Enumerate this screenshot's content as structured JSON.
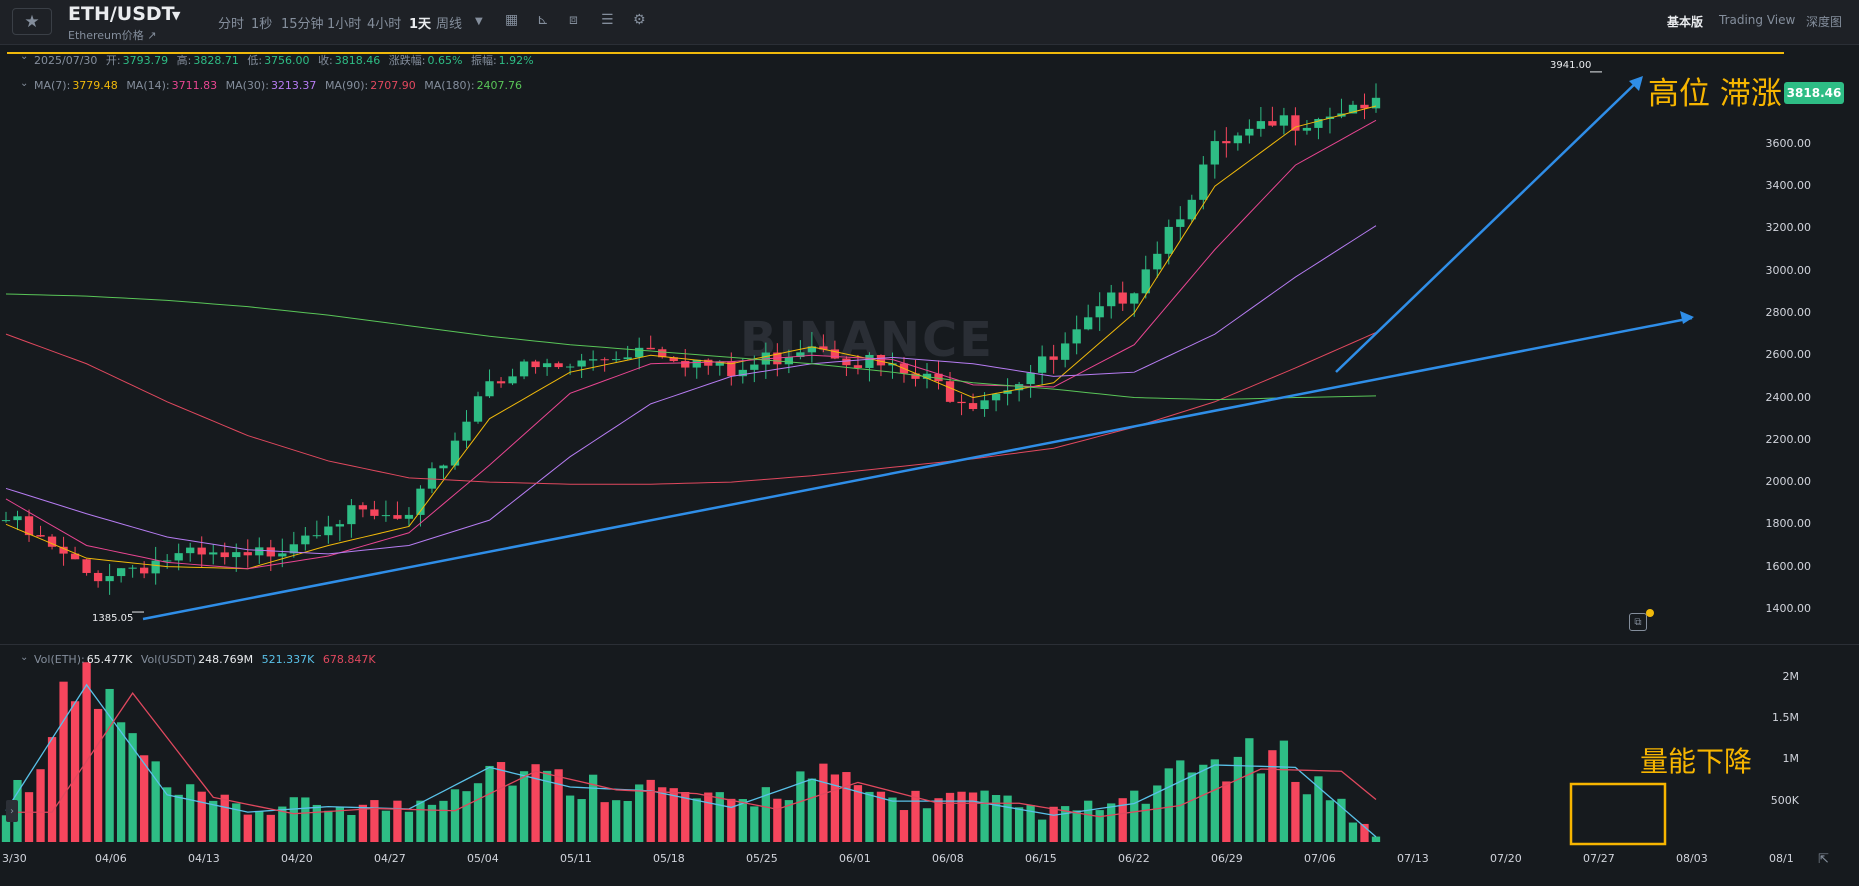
{
  "header": {
    "symbol": "ETH/USDT",
    "subtitle": "Ethereum价格 ↗",
    "timeframes": [
      "分时",
      "1秒",
      "15分钟",
      "1小时",
      "4小时",
      "1天",
      "周线"
    ],
    "active_timeframe": "1天",
    "view_tabs": [
      "基本版",
      "Trading View",
      "深度图"
    ],
    "active_view": "基本版"
  },
  "ohlc": {
    "date": "2025/07/30",
    "open_label": "开:",
    "open": "3793.79",
    "high_label": "高:",
    "high": "3828.71",
    "low_label": "低:",
    "low": "3756.00",
    "close_label": "收:",
    "close": "3818.46",
    "change_label": "涨跌幅:",
    "change": "0.65%",
    "amp_label": "振幅:",
    "amp": "1.92%"
  },
  "ma": [
    {
      "label": "MA(7):",
      "value": "3779.48",
      "color": "#f0b90b"
    },
    {
      "label": "MA(14):",
      "value": "3711.83",
      "color": "#e84591"
    },
    {
      "label": "MA(30):",
      "value": "3213.37",
      "color": "#b67cf2"
    },
    {
      "label": "MA(90):",
      "value": "2707.90",
      "color": "#e0485e"
    },
    {
      "label": "MA(180):",
      "value": "2407.76",
      "color": "#59c558"
    }
  ],
  "vol": [
    {
      "label": "Vol(ETH):",
      "value": "65.477K",
      "color": "#eaecef"
    },
    {
      "label": "Vol(USDT)",
      "value": "248.769M",
      "color": "#eaecef"
    },
    {
      "label": "",
      "value": "521.337K",
      "color": "#59c1e8"
    },
    {
      "label": "",
      "value": "678.847K",
      "color": "#e0485e"
    }
  ],
  "price_axis": [
    "3600.00",
    "3400.00",
    "3200.00",
    "3000.00",
    "2800.00",
    "2600.00",
    "2400.00",
    "2200.00",
    "2000.00",
    "1800.00",
    "1600.00",
    "1400.00"
  ],
  "volume_axis": [
    "2M",
    "1.5M",
    "1M",
    "500K"
  ],
  "date_axis": [
    "3/30",
    "04/06",
    "04/13",
    "04/20",
    "04/27",
    "05/04",
    "05/11",
    "05/18",
    "05/25",
    "06/01",
    "06/08",
    "06/15",
    "06/22",
    "06/29",
    "07/06",
    "07/13",
    "07/20",
    "07/27",
    "08/03",
    "08/1"
  ],
  "current_price": "3818.46",
  "high_marker": "3941.00",
  "low_marker": "1385.05",
  "annotations": {
    "top": "高位 滞涨",
    "bottom": "量能下降"
  },
  "watermark": "BINANCE",
  "colors": {
    "up": "#2ebd85",
    "down": "#f6465d",
    "trendline": "#2f8ee8",
    "annotation": "#f7b500",
    "accent": "#f0b90b"
  },
  "chart_data": {
    "type": "candlestick",
    "title": "ETH/USDT",
    "x": [
      "2025/03/30",
      "2025/04/06",
      "2025/04/13",
      "2025/04/20",
      "2025/04/27",
      "2025/05/04",
      "2025/05/11",
      "2025/05/18",
      "2025/05/25",
      "2025/06/01",
      "2025/06/08",
      "2025/06/15",
      "2025/06/22",
      "2025/06/29",
      "2025/07/06",
      "2025/07/13",
      "2025/07/20",
      "2025/07/27"
    ],
    "series": [
      {
        "name": "close",
        "values": [
          1820,
          1560,
          1640,
          1620,
          1840,
          1810,
          2510,
          2540,
          2660,
          2500,
          2680,
          2520,
          2400,
          2570,
          2950,
          3560,
          3720,
          3818.46
        ]
      },
      {
        "name": "MA(7)",
        "values": [
          1800,
          1640,
          1600,
          1590,
          1700,
          1790,
          2300,
          2520,
          2600,
          2560,
          2640,
          2560,
          2400,
          2470,
          2800,
          3400,
          3680,
          3779.48
        ]
      },
      {
        "name": "MA(14)",
        "values": [
          1920,
          1700,
          1620,
          1590,
          1650,
          1760,
          2080,
          2420,
          2560,
          2570,
          2600,
          2580,
          2460,
          2450,
          2650,
          3100,
          3500,
          3711.83
        ]
      },
      {
        "name": "MA(30)",
        "values": [
          1970,
          1850,
          1740,
          1680,
          1660,
          1700,
          1820,
          2120,
          2370,
          2500,
          2560,
          2590,
          2560,
          2500,
          2520,
          2700,
          2970,
          3213.37
        ]
      },
      {
        "name": "MA(90)",
        "values": [
          2700,
          2560,
          2380,
          2220,
          2100,
          2020,
          2000,
          1990,
          1990,
          2000,
          2030,
          2070,
          2110,
          2160,
          2260,
          2380,
          2540,
          2707.9
        ]
      },
      {
        "name": "MA(180)",
        "values": [
          2890,
          2880,
          2860,
          2830,
          2790,
          2740,
          2690,
          2650,
          2620,
          2590,
          2560,
          2520,
          2470,
          2440,
          2400,
          2390,
          2400,
          2407.76
        ]
      },
      {
        "name": "Vol(ETH)",
        "values": [
          400,
          2000,
          600,
          380,
          450,
          420,
          950,
          700,
          650,
          440,
          800,
          520,
          520,
          340,
          490,
          980,
          950,
          65.477
        ]
      }
    ],
    "ylim": [
      1300,
      3950
    ],
    "high": 3941.0,
    "low": 1385.05,
    "volume_ylim": [
      0,
      2200000
    ]
  }
}
